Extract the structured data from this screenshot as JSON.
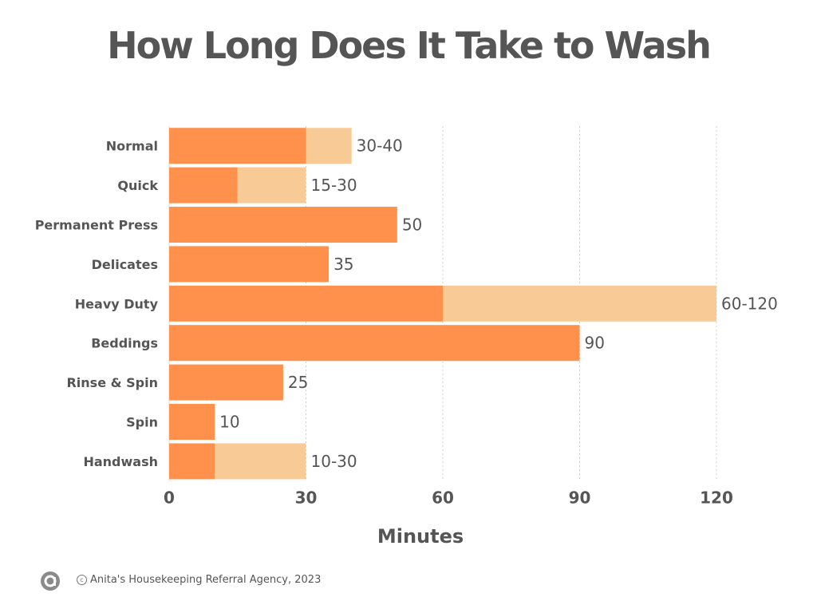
{
  "chart_data": {
    "type": "bar",
    "orientation": "horizontal",
    "stacked": true,
    "title": "How Long Does It Take to Wash",
    "xlabel": "Minutes",
    "ylabel": "",
    "xlim": [
      0,
      120
    ],
    "xticks": [
      0,
      30,
      60,
      90,
      120
    ],
    "grid": "vertical-dotted",
    "categories": [
      "Normal",
      "Quick",
      "Permanent Press",
      "Delicates",
      "Heavy Duty",
      "Beddings",
      "Rinse & Spin",
      "Spin",
      "Handwash"
    ],
    "series": [
      {
        "color": "#FF914D",
        "values": [
          30,
          15,
          50,
          35,
          60,
          90,
          25,
          10,
          10
        ]
      },
      {
        "color": "#F8CB96",
        "values": [
          10,
          15,
          0,
          0,
          60,
          0,
          0,
          0,
          20
        ]
      }
    ],
    "data_labels": [
      "30-40",
      "15-30",
      "50",
      "35",
      "60-120",
      "90",
      "25",
      "10",
      "10-30"
    ]
  },
  "footer": {
    "logo_icon": "circle-a-logo-icon",
    "copyright_icon": "copyright-icon",
    "text": "Anita's Housekeeping Referral Agency, 2023"
  }
}
